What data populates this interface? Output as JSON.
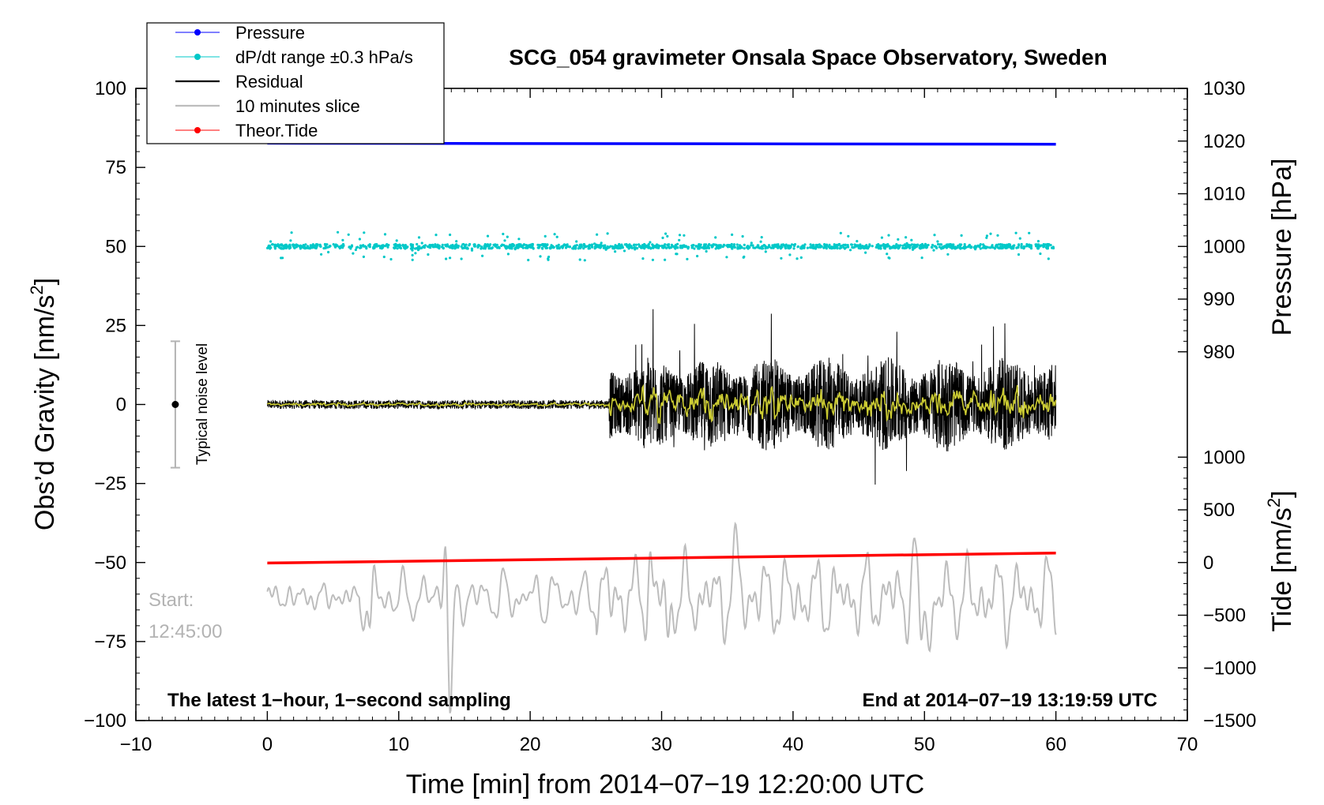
{
  "chart_data": {
    "type": "line",
    "title": "SCG_054 gravimeter Onsala Space Observatory, Sweden",
    "xlabel": "Time [min] from 2014−07−19 12:20:00 UTC",
    "ylabel_left_main": "Obs’d Gravity [nm/s",
    "ylabel_left_sup": "2",
    "ylabel_left_end": "]",
    "ylabel_right_pressure": "Pressure [hPa]",
    "ylabel_right_tide_main": "Tide [nm/s",
    "ylabel_right_tide_sup": "2",
    "ylabel_right_tide_end": "]",
    "xlim": [
      -10,
      70
    ],
    "ylim": [
      -100,
      100
    ],
    "pressure_axis": {
      "ticks": [
        980,
        990,
        1000,
        1010,
        1020,
        1030
      ],
      "labels": [
        "980",
        "990",
        "1000",
        "1010",
        "1020",
        "1030"
      ],
      "map": {
        "data": [
          1000,
          1030
        ],
        "gravity": [
          50,
          100
        ]
      }
    },
    "tide_axis": {
      "ticks": [
        -1500,
        -1000,
        -500,
        0,
        500,
        1000
      ],
      "labels": [
        "−1500",
        "−1000",
        "−500",
        "0",
        "500",
        "1000"
      ],
      "map": {
        "data": [
          -1500,
          0
        ],
        "gravity": [
          -100,
          -50
        ]
      }
    },
    "x_ticks": [
      -10,
      0,
      10,
      20,
      30,
      40,
      50,
      60,
      70
    ],
    "x_tick_labels": [
      "−10",
      "0",
      "10",
      "20",
      "30",
      "40",
      "50",
      "60",
      "70"
    ],
    "y_ticks": [
      -100,
      -75,
      -50,
      -25,
      0,
      25,
      50,
      75,
      100
    ],
    "y_tick_labels": [
      "−100",
      "−75",
      "−50",
      "−25",
      "0",
      "25",
      "50",
      "75",
      "100"
    ],
    "legend": {
      "position": "top-left",
      "entries": [
        {
          "label": "Pressure",
          "color": "#0000ff",
          "marker": true
        },
        {
          "label": "dP/dt range ±0.3 hPa/s",
          "color": "#00c8c8",
          "marker": true
        },
        {
          "label": "Residual",
          "color": "#000000",
          "marker": false
        },
        {
          "label": "10 minutes slice",
          "color": "#bdbdbd",
          "marker": false
        },
        {
          "label": "Theor.Tide",
          "color": "#ff0000",
          "marker": true
        }
      ]
    },
    "series": [
      {
        "name": "Pressure",
        "axis": "pressure",
        "values_hpa": [
          1019.6,
          1019.4
        ],
        "x": [
          0,
          60
        ],
        "color": "#0000ff"
      },
      {
        "name": "dP/dt range ±0.3 hPa/s",
        "center_gravity": 50,
        "color": "#00c8c8"
      },
      {
        "name": "Residual",
        "center_gravity": 0,
        "color": "#000000"
      },
      {
        "name": "10 minutes slice",
        "center_gravity": -61,
        "color": "#bdbdbd"
      },
      {
        "name": "Theor.Tide",
        "axis": "tide",
        "values_tide": [
          -5,
          90
        ],
        "x": [
          0,
          60
        ],
        "color": "#ff0000"
      }
    ],
    "noise_bar": {
      "label": "Typical noise level",
      "x": -7,
      "y": 0,
      "low": -20,
      "high": 20
    },
    "start_label_line1": "Start:",
    "start_label_line2": "12:45:00",
    "footer_left": "The latest 1−hour, 1−second sampling",
    "footer_right": "End at 2014−07−19 13:19:59 UTC"
  }
}
